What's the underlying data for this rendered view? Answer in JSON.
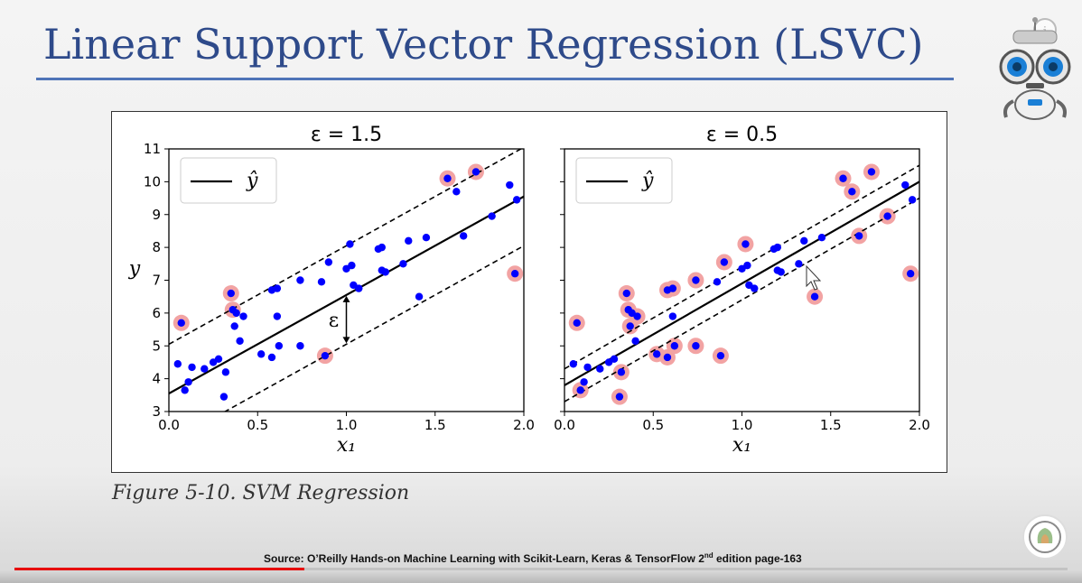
{
  "slide": {
    "title": "Linear Support Vector Regression (LSVC)",
    "caption": "Figure 5-10. SVM Regression",
    "source_prefix": "Source: O’Reilly  Hands-on Machine Learning with Scikit-Learn, Keras & TensorFlow 2",
    "source_sup": "nd",
    "source_suffix": " edition page-163"
  },
  "icons": {
    "robot": "robot-mascot-icon",
    "info": "i",
    "channel_logo": "channel-logo-icon"
  },
  "player": {
    "progress": 0.275,
    "progress_color": "#e60000"
  },
  "colors": {
    "title": "#2e4a8a",
    "rule": "#4f74b8",
    "point": "#0000ff",
    "highlight": "#f2a3a3"
  },
  "chart_data": [
    {
      "type": "scatter",
      "title": "ε = 1.5",
      "epsilon": 1.5,
      "xlabel": "x₁",
      "ylabel": "y",
      "xlim": [
        0,
        2
      ],
      "ylim": [
        3,
        11
      ],
      "xticks": [
        "0.0",
        "0.5",
        "1.0",
        "1.5",
        "2.0"
      ],
      "yticks": [
        "3",
        "4",
        "5",
        "6",
        "7",
        "8",
        "9",
        "10",
        "11"
      ],
      "legend": {
        "label": "ŷ",
        "position": "top-left"
      },
      "line": {
        "intercept": 3.55,
        "slope": 3.0
      },
      "annotation": "ε",
      "highlighted": [
        [
          0.07,
          5.7
        ],
        [
          0.35,
          6.6
        ],
        [
          0.36,
          6.1
        ],
        [
          0.88,
          4.7
        ],
        [
          1.57,
          10.1
        ],
        [
          1.73,
          10.3
        ],
        [
          1.95,
          7.2
        ]
      ],
      "points": [
        [
          0.05,
          4.45
        ],
        [
          0.07,
          5.7
        ],
        [
          0.09,
          3.65
        ],
        [
          0.11,
          3.9
        ],
        [
          0.13,
          4.35
        ],
        [
          0.2,
          4.3
        ],
        [
          0.25,
          4.5
        ],
        [
          0.28,
          4.6
        ],
        [
          0.31,
          3.45
        ],
        [
          0.32,
          4.2
        ],
        [
          0.35,
          6.6
        ],
        [
          0.36,
          6.1
        ],
        [
          0.37,
          5.6
        ],
        [
          0.38,
          6.0
        ],
        [
          0.4,
          5.15
        ],
        [
          0.42,
          5.9
        ],
        [
          0.52,
          4.75
        ],
        [
          0.58,
          4.65
        ],
        [
          0.58,
          6.7
        ],
        [
          0.61,
          6.75
        ],
        [
          0.62,
          5.0
        ],
        [
          0.61,
          5.9
        ],
        [
          0.74,
          7.0
        ],
        [
          0.74,
          5.0
        ],
        [
          0.86,
          6.95
        ],
        [
          0.88,
          4.7
        ],
        [
          0.9,
          7.55
        ],
        [
          1.0,
          7.35
        ],
        [
          1.02,
          8.1
        ],
        [
          1.03,
          7.45
        ],
        [
          1.04,
          6.85
        ],
        [
          1.07,
          6.75
        ],
        [
          1.18,
          7.95
        ],
        [
          1.2,
          8.0
        ],
        [
          1.2,
          7.3
        ],
        [
          1.22,
          7.25
        ],
        [
          1.32,
          7.5
        ],
        [
          1.35,
          8.2
        ],
        [
          1.41,
          6.5
        ],
        [
          1.45,
          8.3
        ],
        [
          1.57,
          10.1
        ],
        [
          1.62,
          9.7
        ],
        [
          1.66,
          8.35
        ],
        [
          1.73,
          10.3
        ],
        [
          1.82,
          8.95
        ],
        [
          1.92,
          9.9
        ],
        [
          1.95,
          7.2
        ],
        [
          1.96,
          9.45
        ]
      ]
    },
    {
      "type": "scatter",
      "title": "ε = 0.5",
      "epsilon": 0.5,
      "xlabel": "x₁",
      "ylabel": "",
      "xlim": [
        0,
        2
      ],
      "ylim": [
        3,
        11
      ],
      "xticks": [
        "0.0",
        "0.5",
        "1.0",
        "1.5",
        "2.0"
      ],
      "yticks": [],
      "legend": {
        "label": "ŷ",
        "position": "top-left"
      },
      "line": {
        "intercept": 3.8,
        "slope": 3.1
      },
      "highlighted": [
        [
          0.07,
          5.7
        ],
        [
          0.09,
          3.65
        ],
        [
          0.31,
          3.45
        ],
        [
          0.32,
          4.2
        ],
        [
          0.35,
          6.6
        ],
        [
          0.36,
          6.1
        ],
        [
          0.37,
          5.6
        ],
        [
          0.41,
          5.9
        ],
        [
          0.52,
          4.75
        ],
        [
          0.58,
          4.65
        ],
        [
          0.58,
          6.7
        ],
        [
          0.61,
          6.75
        ],
        [
          0.62,
          5.0
        ],
        [
          0.74,
          7.0
        ],
        [
          0.74,
          5.0
        ],
        [
          0.88,
          4.7
        ],
        [
          0.9,
          7.55
        ],
        [
          1.02,
          8.1
        ],
        [
          1.41,
          6.5
        ],
        [
          1.57,
          10.1
        ],
        [
          1.62,
          9.7
        ],
        [
          1.66,
          8.35
        ],
        [
          1.73,
          10.3
        ],
        [
          1.82,
          8.95
        ],
        [
          1.95,
          7.2
        ]
      ],
      "points": [
        [
          0.05,
          4.45
        ],
        [
          0.07,
          5.7
        ],
        [
          0.09,
          3.65
        ],
        [
          0.11,
          3.9
        ],
        [
          0.13,
          4.35
        ],
        [
          0.2,
          4.3
        ],
        [
          0.25,
          4.5
        ],
        [
          0.28,
          4.6
        ],
        [
          0.31,
          3.45
        ],
        [
          0.32,
          4.2
        ],
        [
          0.35,
          6.6
        ],
        [
          0.36,
          6.1
        ],
        [
          0.37,
          5.6
        ],
        [
          0.38,
          6.0
        ],
        [
          0.4,
          5.15
        ],
        [
          0.41,
          5.9
        ],
        [
          0.52,
          4.75
        ],
        [
          0.58,
          4.65
        ],
        [
          0.58,
          6.7
        ],
        [
          0.61,
          6.75
        ],
        [
          0.62,
          5.0
        ],
        [
          0.61,
          5.9
        ],
        [
          0.74,
          7.0
        ],
        [
          0.74,
          5.0
        ],
        [
          0.86,
          6.95
        ],
        [
          0.88,
          4.7
        ],
        [
          0.9,
          7.55
        ],
        [
          1.0,
          7.35
        ],
        [
          1.02,
          8.1
        ],
        [
          1.03,
          7.45
        ],
        [
          1.04,
          6.85
        ],
        [
          1.07,
          6.75
        ],
        [
          1.18,
          7.95
        ],
        [
          1.2,
          8.0
        ],
        [
          1.2,
          7.3
        ],
        [
          1.22,
          7.25
        ],
        [
          1.32,
          7.5
        ],
        [
          1.35,
          8.2
        ],
        [
          1.41,
          6.5
        ],
        [
          1.45,
          8.3
        ],
        [
          1.57,
          10.1
        ],
        [
          1.62,
          9.7
        ],
        [
          1.66,
          8.35
        ],
        [
          1.73,
          10.3
        ],
        [
          1.82,
          8.95
        ],
        [
          1.92,
          9.9
        ],
        [
          1.95,
          7.2
        ],
        [
          1.96,
          9.45
        ]
      ]
    }
  ]
}
